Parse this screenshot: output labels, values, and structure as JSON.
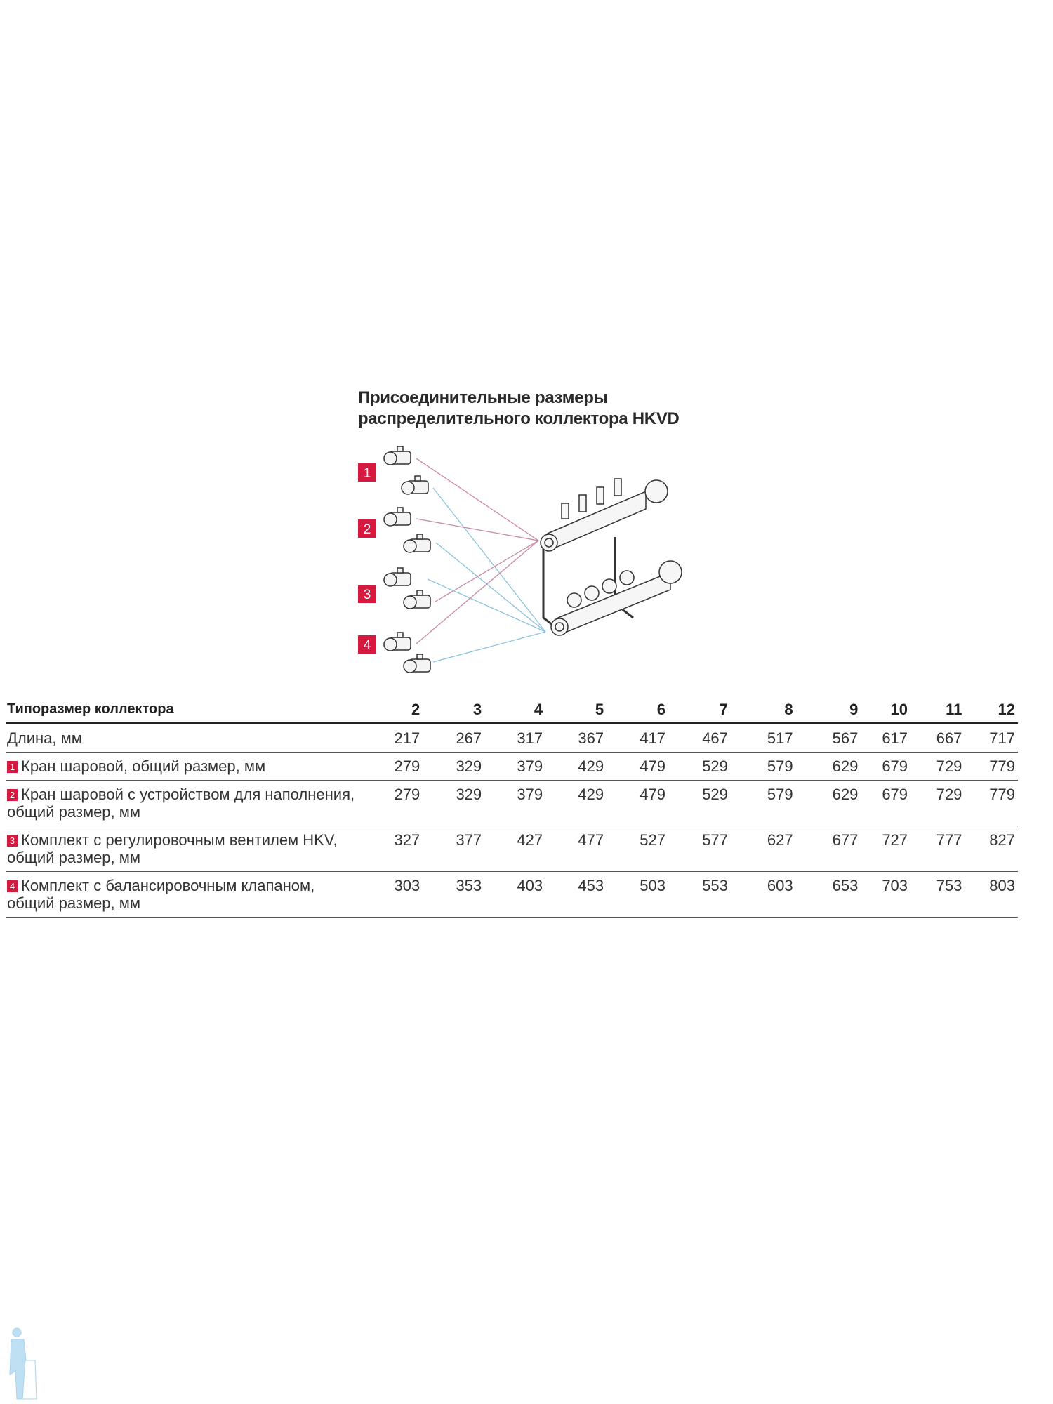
{
  "title_lines": [
    "Присоединительные размеры",
    "распределительного коллектора HKVD"
  ],
  "diagram": {
    "badges": [
      "1",
      "2",
      "3",
      "4"
    ],
    "badge_color": "#d5193f",
    "supply_line_color": "#c98aa6",
    "return_line_color": "#8cc4dc"
  },
  "table": {
    "header_label": "Типоразмер коллектора",
    "sizes": [
      "2",
      "3",
      "4",
      "5",
      "6",
      "7",
      "8",
      "9",
      "10",
      "11",
      "12"
    ],
    "rows": [
      {
        "badge": "",
        "label": "Длина, мм",
        "values": [
          "217",
          "267",
          "317",
          "367",
          "417",
          "467",
          "517",
          "567",
          "617",
          "667",
          "717"
        ]
      },
      {
        "badge": "1",
        "label": "Кран шаровой, общий размер, мм",
        "values": [
          "279",
          "329",
          "379",
          "429",
          "479",
          "529",
          "579",
          "629",
          "679",
          "729",
          "779"
        ]
      },
      {
        "badge": "2",
        "label": "Кран шаровой с устройством для наполнения, общий размер, мм",
        "values": [
          "279",
          "329",
          "379",
          "429",
          "479",
          "529",
          "579",
          "629",
          "679",
          "729",
          "779"
        ]
      },
      {
        "badge": "3",
        "label": "Комплект с регулировочным вентилем HKV, общий размер, мм",
        "values": [
          "327",
          "377",
          "427",
          "477",
          "527",
          "577",
          "627",
          "677",
          "727",
          "777",
          "827"
        ]
      },
      {
        "badge": "4",
        "label": "Комплект с балансировочным клапаном, общий размер, мм",
        "values": [
          "303",
          "353",
          "403",
          "453",
          "503",
          "553",
          "603",
          "653",
          "703",
          "753",
          "803"
        ]
      }
    ]
  }
}
